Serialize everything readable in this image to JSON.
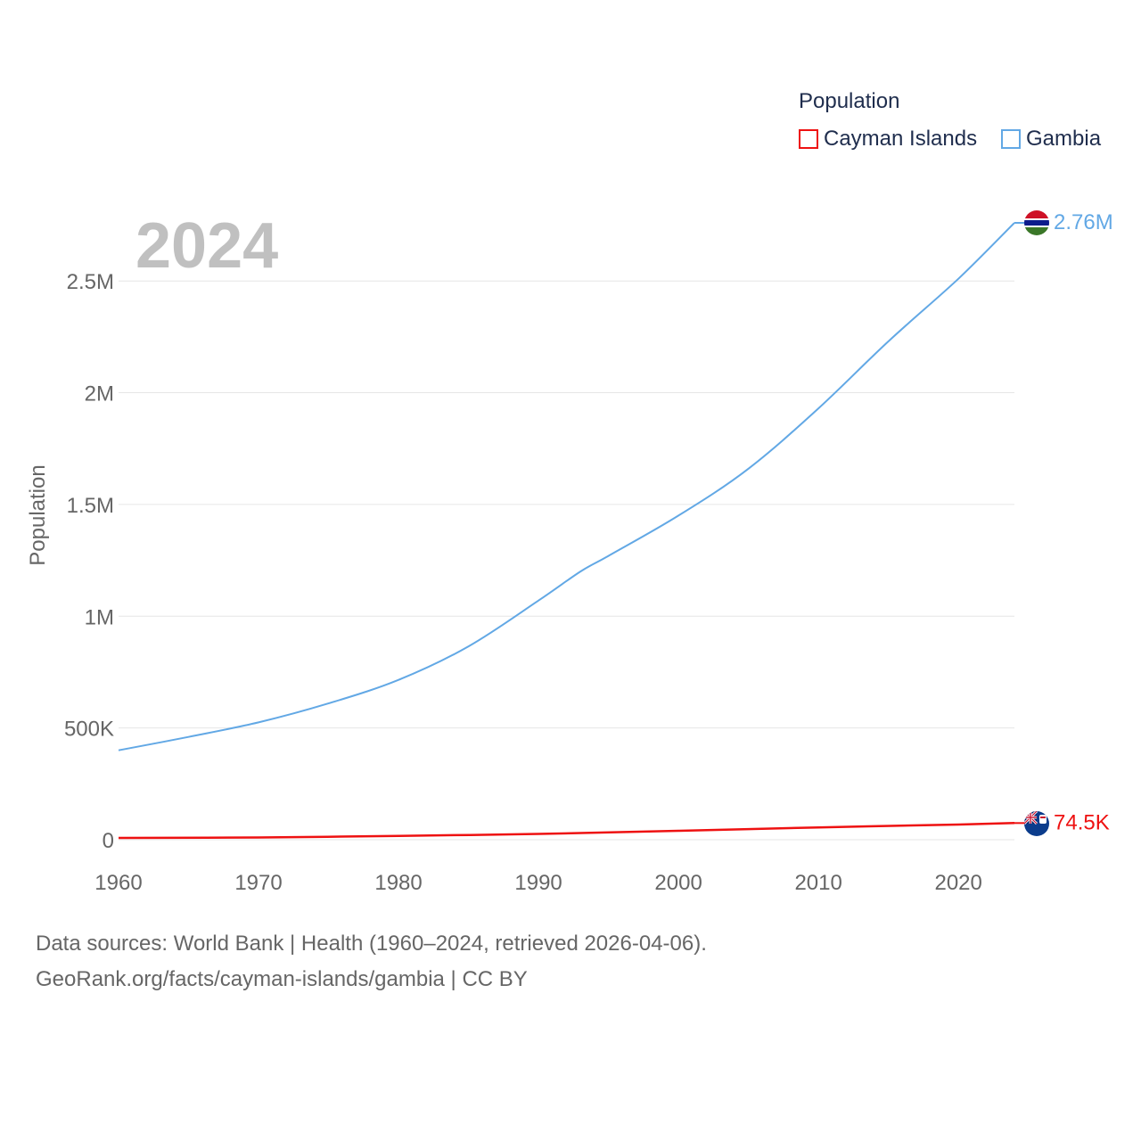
{
  "legend": {
    "title": "Population",
    "items": [
      {
        "name": "Cayman Islands",
        "color": "#ee1111"
      },
      {
        "name": "Gambia",
        "color": "#62a8e5"
      }
    ]
  },
  "year_label": "2024",
  "footer": {
    "line1": "Data sources: World Bank | Health (1960–2024, retrieved 2026-04-06).",
    "line2": "GeoRank.org/facts/cayman-islands/gambia | CC BY"
  },
  "colors": {
    "grid": "#e6e6e6",
    "axis_text": "#666666",
    "year": "#c0c0c0"
  },
  "chart_data": {
    "type": "line",
    "title": "Population",
    "xlabel": "",
    "ylabel": "Population",
    "xlim": [
      1960,
      2024
    ],
    "ylim": [
      0,
      2760000
    ],
    "x_ticks": [
      1960,
      1970,
      1980,
      1990,
      2000,
      2010,
      2020
    ],
    "y_ticks": [
      0,
      500000,
      1000000,
      1500000,
      2000000,
      2500000
    ],
    "y_tick_labels": [
      "0",
      "500K",
      "1M",
      "1.5M",
      "2M",
      "2.5M"
    ],
    "series": [
      {
        "name": "Gambia",
        "color": "#62a8e5",
        "end_label": "2.76M",
        "flag": "gambia-flag-icon",
        "x": [
          1960,
          1965,
          1970,
          1975,
          1980,
          1985,
          1990,
          1993,
          1995,
          2000,
          2005,
          2010,
          2015,
          2020,
          2024
        ],
        "values": [
          400000,
          460000,
          525000,
          610000,
          715000,
          865000,
          1070000,
          1200000,
          1270000,
          1450000,
          1660000,
          1930000,
          2230000,
          2510000,
          2760000
        ]
      },
      {
        "name": "Cayman Islands",
        "color": "#ee1111",
        "end_label": "74.5K",
        "flag": "cayman-flag-icon",
        "x": [
          1960,
          1970,
          1980,
          1990,
          2000,
          2010,
          2020,
          2024
        ],
        "values": [
          8000,
          10000,
          17000,
          26000,
          40000,
          55000,
          68000,
          74500
        ]
      }
    ]
  }
}
